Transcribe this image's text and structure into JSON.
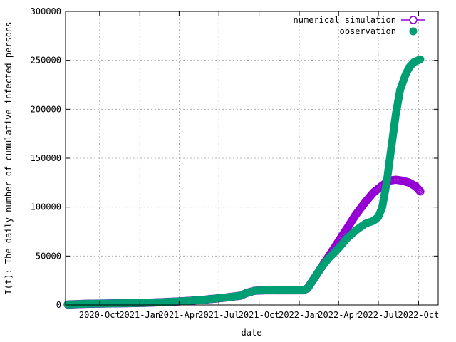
{
  "chart_data": {
    "type": "scatter",
    "title": "",
    "xlabel": "date",
    "ylabel": "I(t): The daily number of cumulative infected persons",
    "ylim": [
      0,
      300000
    ],
    "xlim": [
      "2020-07-15",
      "2022-11-15"
    ],
    "grid": true,
    "legend_position": "top-right",
    "y_ticks": [
      "0",
      "50000",
      "100000",
      "150000",
      "200000",
      "250000",
      "300000"
    ],
    "x_ticks": [
      {
        "label": "2020-Oct",
        "date": "2020-10-01"
      },
      {
        "label": "2021-Jan",
        "date": "2021-01-01"
      },
      {
        "label": "2021-Apr",
        "date": "2021-04-01"
      },
      {
        "label": "2021-Jul",
        "date": "2021-07-01"
      },
      {
        "label": "2021-Oct",
        "date": "2021-10-01"
      },
      {
        "label": "2022-Jan",
        "date": "2022-01-01"
      },
      {
        "label": "2022-Apr",
        "date": "2022-04-01"
      },
      {
        "label": "2022-Jul",
        "date": "2022-07-01"
      },
      {
        "label": "2022-Oct",
        "date": "2022-10-01"
      }
    ],
    "series": [
      {
        "name": "numerical simulation",
        "color": "#9400d3",
        "marker": "open-circle-line",
        "x": [
          "2020-07-20",
          "2020-09-01",
          "2020-10-15",
          "2020-12-01",
          "2021-01-15",
          "2021-03-01",
          "2021-04-15",
          "2021-06-01",
          "2021-07-15",
          "2021-08-20",
          "2021-09-01",
          "2021-09-20",
          "2021-10-15",
          "2021-11-15",
          "2021-12-15",
          "2022-01-10",
          "2022-01-20",
          "2022-02-01",
          "2022-02-20",
          "2022-03-10",
          "2022-04-01",
          "2022-04-20",
          "2022-05-10",
          "2022-06-01",
          "2022-06-20",
          "2022-07-10",
          "2022-07-25",
          "2022-08-10",
          "2022-08-25",
          "2022-09-10",
          "2022-09-25",
          "2022-10-05"
        ],
        "y": [
          500,
          1200,
          1500,
          1800,
          2200,
          3000,
          4000,
          5500,
          7500,
          9500,
          12000,
          14500,
          15000,
          15000,
          15000,
          15000,
          17000,
          25000,
          38000,
          50000,
          65000,
          78000,
          92000,
          105000,
          115000,
          122000,
          127000,
          128000,
          127000,
          125000,
          121000,
          116000
        ]
      },
      {
        "name": "observation",
        "color": "#009e73",
        "marker": "filled-circle",
        "x": [
          "2020-07-20",
          "2020-09-01",
          "2020-10-15",
          "2020-12-01",
          "2021-01-15",
          "2021-03-01",
          "2021-04-15",
          "2021-06-01",
          "2021-07-15",
          "2021-08-20",
          "2021-09-01",
          "2021-09-20",
          "2021-10-15",
          "2021-11-15",
          "2021-12-15",
          "2022-01-10",
          "2022-01-20",
          "2022-02-01",
          "2022-02-20",
          "2022-03-10",
          "2022-04-01",
          "2022-04-20",
          "2022-05-10",
          "2022-06-01",
          "2022-06-20",
          "2022-07-01",
          "2022-07-10",
          "2022-07-20",
          "2022-08-01",
          "2022-08-10",
          "2022-08-20",
          "2022-09-01",
          "2022-09-10",
          "2022-09-20",
          "2022-10-05"
        ],
        "y": [
          500,
          1200,
          1500,
          1800,
          2200,
          3000,
          4000,
          5500,
          7500,
          9500,
          12000,
          14500,
          15000,
          15000,
          15000,
          15000,
          17000,
          25000,
          38000,
          48000,
          58000,
          68000,
          76000,
          83000,
          86000,
          90000,
          100000,
          125000,
          165000,
          195000,
          220000,
          235000,
          243000,
          248000,
          251000
        ]
      }
    ]
  }
}
